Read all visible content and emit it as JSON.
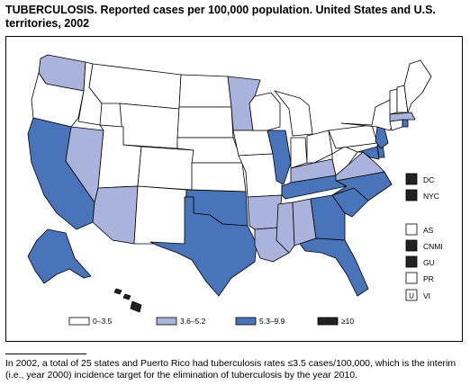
{
  "title": "TUBERCULOSIS. Reported cases per 100,000 population. United States and U.S. territories, 2002",
  "colors": {
    "low": "#ffffff",
    "mid_low": "#a9b3dc",
    "mid_high": "#4a74b9",
    "high": "#222222",
    "border": "#000000"
  },
  "legend": [
    {
      "label": "0–3.5",
      "color": "#ffffff"
    },
    {
      "label": "3.6–5.2",
      "color": "#a9b3dc"
    },
    {
      "label": "5.3–9.9",
      "color": "#4a74b9"
    },
    {
      "label": "≥10",
      "color": "#222222"
    }
  ],
  "territories": [
    {
      "code": "DC",
      "color": "#222222",
      "mark": ""
    },
    {
      "code": "NYC",
      "color": "#222222",
      "mark": ""
    },
    {
      "code": "AS",
      "color": "#ffffff",
      "mark": ""
    },
    {
      "code": "CNMI",
      "color": "#222222",
      "mark": ""
    },
    {
      "code": "GU",
      "color": "#222222",
      "mark": ""
    },
    {
      "code": "PR",
      "color": "#ffffff",
      "mark": ""
    },
    {
      "code": "VI",
      "color": "#ffffff",
      "mark": "U"
    }
  ],
  "footnote": "In 2002, a total of 25 states and Puerto Rico had tuberculosis rates ≤3.5 cases/100,000, which is the interim (i.e., year 2000) incidence target for the elimination of tuberculosis by the year 2010."
}
